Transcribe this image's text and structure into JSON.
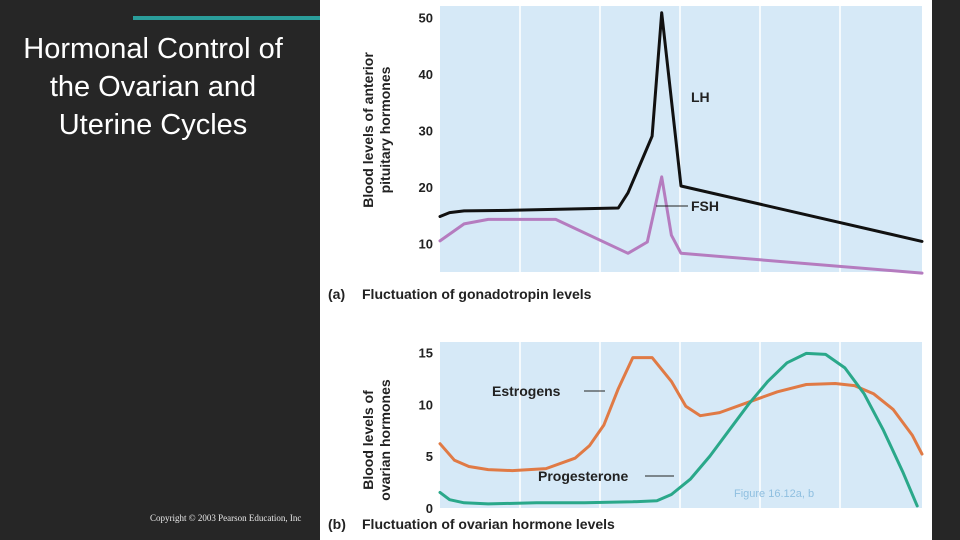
{
  "slide": {
    "title": "Hormonal Control of the Ovarian and Uterine Cycles",
    "copyright": "Copyright © 2003 Pearson Education, Inc",
    "figure_ref": "Figure 16.12a, b",
    "accent_color": "#2a9d9a"
  },
  "chart_data": [
    {
      "type": "line",
      "panel": "(a)",
      "title": "Fluctuation of gonadotropin levels",
      "ylabel_line1": "Blood levels of anterior",
      "ylabel_line2": "pituitary hormones",
      "ylim": [
        5,
        52
      ],
      "xlim": [
        0,
        1
      ],
      "yticks": [
        10,
        20,
        30,
        40,
        50
      ],
      "grid": true,
      "background": "#d6e9f7",
      "series": [
        {
          "name": "LH",
          "color": "#111111",
          "x": [
            0,
            0.02,
            0.05,
            0.15,
            0.37,
            0.39,
            0.43,
            0.44,
            0.46,
            0.5,
            1.0
          ],
          "y": [
            14.8,
            15.5,
            15.8,
            15.9,
            16.3,
            19,
            27,
            29,
            50.8,
            20.2,
            10.4
          ]
        },
        {
          "name": "FSH",
          "color": "#b57cbf",
          "x": [
            0,
            0.05,
            0.1,
            0.24,
            0.39,
            0.43,
            0.46,
            0.48,
            0.5,
            1.0
          ],
          "y": [
            10.5,
            13.5,
            14.3,
            14.3,
            8.3,
            10.3,
            21.8,
            11.5,
            8.3,
            4.8
          ]
        }
      ]
    },
    {
      "type": "line",
      "panel": "(b)",
      "title": "Fluctuation of ovarian hormone levels",
      "ylabel_line1": "Blood levels of",
      "ylabel_line2": "ovarian hormones",
      "ylim": [
        0,
        16
      ],
      "xlim": [
        0,
        1
      ],
      "yticks": [
        0,
        5,
        10,
        15
      ],
      "grid": true,
      "background": "#d6e9f7",
      "series": [
        {
          "name": "Estrogens",
          "color": "#e07a45",
          "x": [
            0,
            0.03,
            0.06,
            0.1,
            0.15,
            0.22,
            0.28,
            0.31,
            0.34,
            0.37,
            0.4,
            0.44,
            0.48,
            0.51,
            0.54,
            0.58,
            0.64,
            0.7,
            0.76,
            0.82,
            0.86,
            0.9,
            0.94,
            0.98,
            1.0
          ],
          "y": [
            6.2,
            4.6,
            4.0,
            3.7,
            3.6,
            3.8,
            4.8,
            6.0,
            8.0,
            11.5,
            14.5,
            14.5,
            12.2,
            9.8,
            8.9,
            9.2,
            10.2,
            11.2,
            11.9,
            12.0,
            11.8,
            11.0,
            9.5,
            7.0,
            5.2
          ]
        },
        {
          "name": "Progesterone",
          "color": "#2aa88a",
          "x": [
            0,
            0.02,
            0.05,
            0.1,
            0.2,
            0.3,
            0.4,
            0.45,
            0.48,
            0.52,
            0.56,
            0.6,
            0.64,
            0.68,
            0.72,
            0.76,
            0.8,
            0.84,
            0.88,
            0.92,
            0.96,
            0.99
          ],
          "y": [
            1.5,
            0.8,
            0.5,
            0.4,
            0.5,
            0.5,
            0.6,
            0.7,
            1.3,
            2.8,
            5.0,
            7.5,
            10.0,
            12.2,
            14.0,
            14.9,
            14.8,
            13.5,
            11.0,
            7.5,
            3.5,
            0.2
          ]
        }
      ]
    }
  ]
}
